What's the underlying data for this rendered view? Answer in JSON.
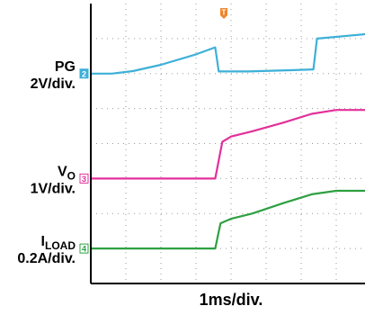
{
  "chart_data": {
    "type": "line",
    "title": "",
    "xlabel": "1ms/div.",
    "x_divisions": 10,
    "y_divisions": 8,
    "trigger_marker": "T",
    "grid": "dotted",
    "xlim": [
      0,
      10
    ],
    "series": [
      {
        "name": "PG",
        "channel": "2",
        "scale": "2V/div.",
        "color": "#3db0d8",
        "baseline_div": 6,
        "x": [
          0,
          0.6,
          1.2,
          2.0,
          3.0,
          3.55,
          3.65,
          4.5,
          5.8,
          6.35,
          6.45,
          8.0,
          10.0
        ],
        "y": [
          6.0,
          6.0,
          6.07,
          6.25,
          6.55,
          6.75,
          6.06,
          6.06,
          6.1,
          6.12,
          7.0,
          7.14,
          7.2
        ]
      },
      {
        "name": "VO",
        "name_main": "V",
        "name_sub": "O",
        "channel": "3",
        "scale": "1V/div.",
        "color": "#e2309a",
        "baseline_div": 3,
        "x": [
          0,
          1.5,
          3.55,
          3.75,
          4.0,
          4.6,
          5.5,
          6.3,
          7.0,
          8.0,
          9.0,
          10.0
        ],
        "y": [
          3.0,
          3.0,
          3.0,
          4.05,
          4.2,
          4.35,
          4.6,
          4.85,
          4.96,
          4.96,
          4.96,
          4.96
        ]
      },
      {
        "name": "ILOAD",
        "name_main": "I",
        "name_sub": "LOAD",
        "channel": "4",
        "scale": "0.2A/div.",
        "color": "#2ea041",
        "baseline_div": 1,
        "x": [
          0,
          1.5,
          3.55,
          3.7,
          4.0,
          4.6,
          5.5,
          6.3,
          7.0,
          8.0,
          9.0,
          10.0
        ],
        "y": [
          1.0,
          1.0,
          1.0,
          1.72,
          1.85,
          2.0,
          2.3,
          2.55,
          2.65,
          2.65,
          2.65,
          2.63
        ]
      }
    ]
  }
}
